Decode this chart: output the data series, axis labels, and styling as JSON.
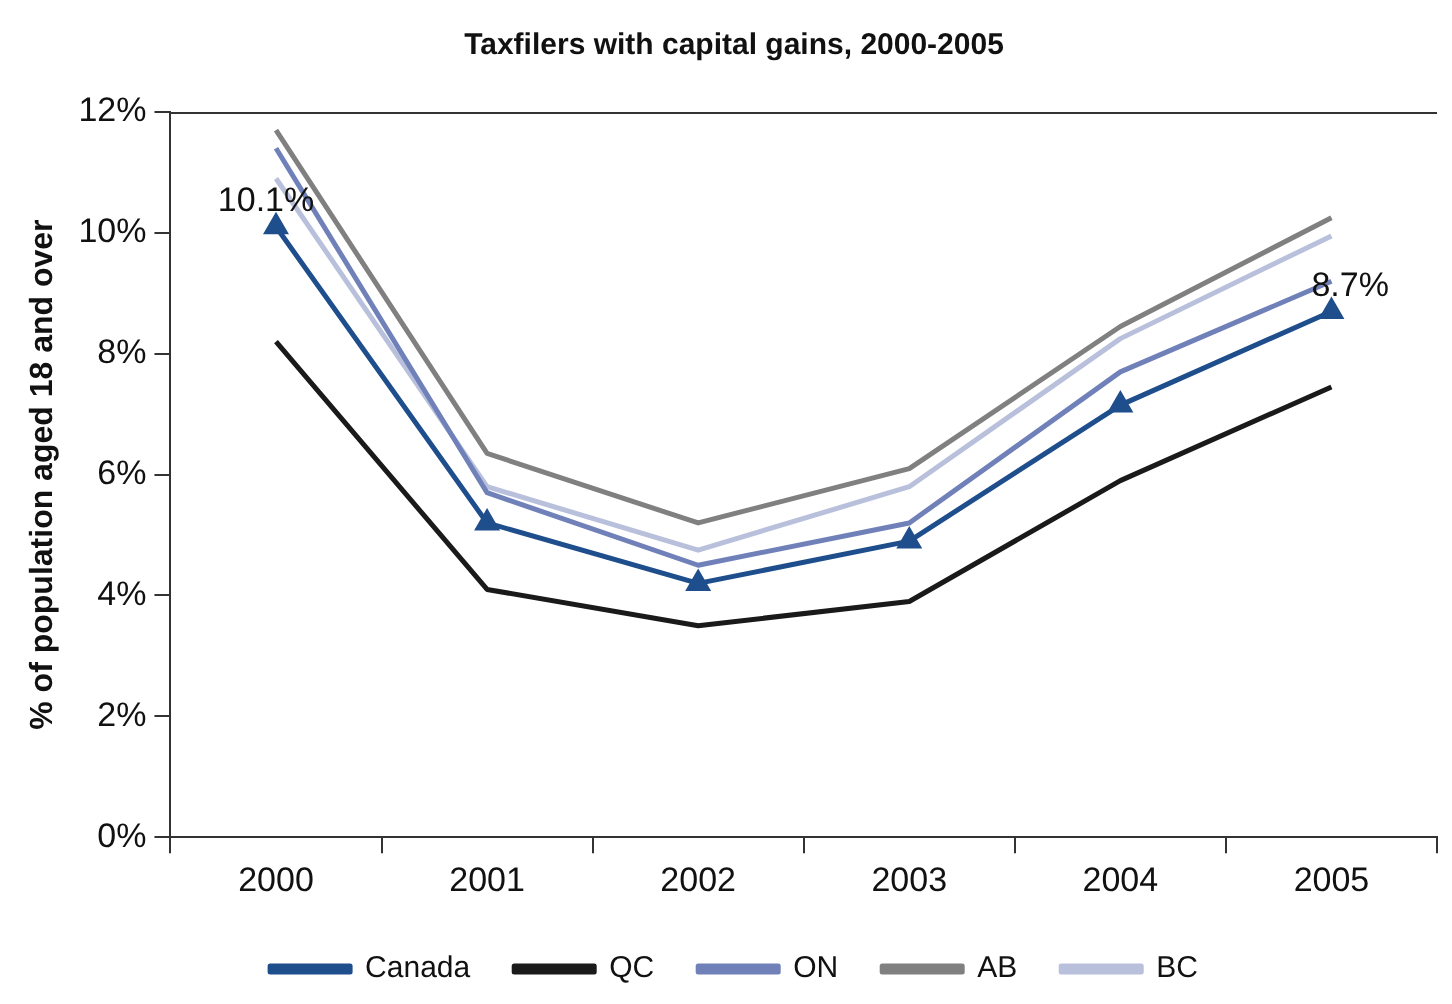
{
  "chart_data": {
    "type": "line",
    "title": "Taxfilers with capital gains, 2000-2005",
    "ylabel": "% of population aged 18 and over",
    "categories": [
      "2000",
      "2001",
      "2002",
      "2003",
      "2004",
      "2005"
    ],
    "series": [
      {
        "name": "Canada",
        "color": "#1f4e8c",
        "marker": "triangle",
        "values": [
          10.1,
          5.2,
          4.2,
          4.9,
          7.15,
          8.7
        ],
        "value_labels": [
          "10.1%",
          null,
          null,
          null,
          null,
          "8.7%"
        ]
      },
      {
        "name": "QC",
        "color": "#1a1a1a",
        "marker": "none",
        "values": [
          8.2,
          4.1,
          3.5,
          3.9,
          5.9,
          7.45
        ]
      },
      {
        "name": "ON",
        "color": "#7080b8",
        "marker": "none",
        "values": [
          11.4,
          5.7,
          4.5,
          5.2,
          7.7,
          9.2
        ]
      },
      {
        "name": "AB",
        "color": "#808080",
        "marker": "none",
        "values": [
          11.7,
          6.35,
          5.2,
          6.1,
          8.45,
          10.25
        ]
      },
      {
        "name": "BC",
        "color": "#b8c0dc",
        "marker": "none",
        "values": [
          10.9,
          5.8,
          4.75,
          5.8,
          8.25,
          9.95
        ]
      }
    ],
    "ylim": [
      0,
      12
    ],
    "yticks": [
      {
        "value": 0,
        "label": "0%"
      },
      {
        "value": 2,
        "label": "2%"
      },
      {
        "value": 4,
        "label": "4%"
      },
      {
        "value": 6,
        "label": "6%"
      },
      {
        "value": 8,
        "label": "8%"
      },
      {
        "value": 10,
        "label": "10%"
      },
      {
        "value": 12,
        "label": "12%"
      }
    ],
    "grid": false,
    "legend": "bottom",
    "line_style": "solid"
  }
}
